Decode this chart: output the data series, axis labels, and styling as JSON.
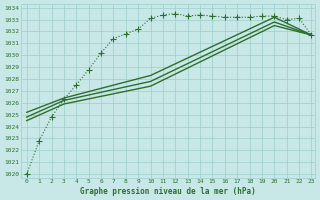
{
  "title": "Graphe pression niveau de la mer (hPa)",
  "bg_color": "#c8e8e8",
  "grid_color": "#9ecece",
  "line_color": "#2d6e2d",
  "xlim_min": -0.5,
  "xlim_max": 23.3,
  "ylim_min": 1019.7,
  "ylim_max": 1034.3,
  "xticks": [
    0,
    1,
    2,
    3,
    4,
    5,
    6,
    7,
    8,
    9,
    10,
    11,
    12,
    13,
    14,
    15,
    16,
    17,
    18,
    19,
    20,
    21,
    22,
    23
  ],
  "yticks": [
    1020,
    1021,
    1022,
    1023,
    1024,
    1025,
    1026,
    1027,
    1028,
    1029,
    1030,
    1031,
    1032,
    1033,
    1034
  ],
  "series": [
    {
      "x": [
        0,
        1,
        2,
        3,
        4,
        5,
        6,
        7,
        8,
        9,
        10,
        11,
        12,
        13,
        14,
        15,
        16,
        17,
        18,
        19,
        20,
        21,
        22,
        23
      ],
      "y": [
        1020.0,
        1022.8,
        1024.8,
        1026.3,
        1027.5,
        1028.8,
        1030.2,
        1031.4,
        1031.8,
        1032.2,
        1033.1,
        1033.4,
        1033.5,
        1033.3,
        1033.4,
        1033.3,
        1033.2,
        1033.2,
        1033.2,
        1033.3,
        1033.3,
        1033.0,
        1033.1,
        1031.7
      ],
      "marker": "+",
      "markersize": 4,
      "linewidth": 0.8,
      "linestyle": "dotted",
      "zorder": 5
    },
    {
      "x": [
        0,
        3,
        10,
        20,
        23
      ],
      "y": [
        1025.2,
        1026.4,
        1028.3,
        1033.2,
        1031.7
      ],
      "marker": null,
      "markersize": 0,
      "linewidth": 1.0,
      "linestyle": "solid",
      "zorder": 4
    },
    {
      "x": [
        0,
        3,
        10,
        20,
        23
      ],
      "y": [
        1024.8,
        1026.2,
        1027.8,
        1032.8,
        1031.7
      ],
      "marker": null,
      "markersize": 0,
      "linewidth": 1.0,
      "linestyle": "solid",
      "zorder": 3
    },
    {
      "x": [
        0,
        3,
        10,
        20,
        23
      ],
      "y": [
        1024.5,
        1025.9,
        1027.4,
        1032.5,
        1031.7
      ],
      "marker": null,
      "markersize": 0,
      "linewidth": 1.0,
      "linestyle": "solid",
      "zorder": 2
    }
  ],
  "xlabel_fontsize": 5.5,
  "tick_fontsize": 4.5
}
